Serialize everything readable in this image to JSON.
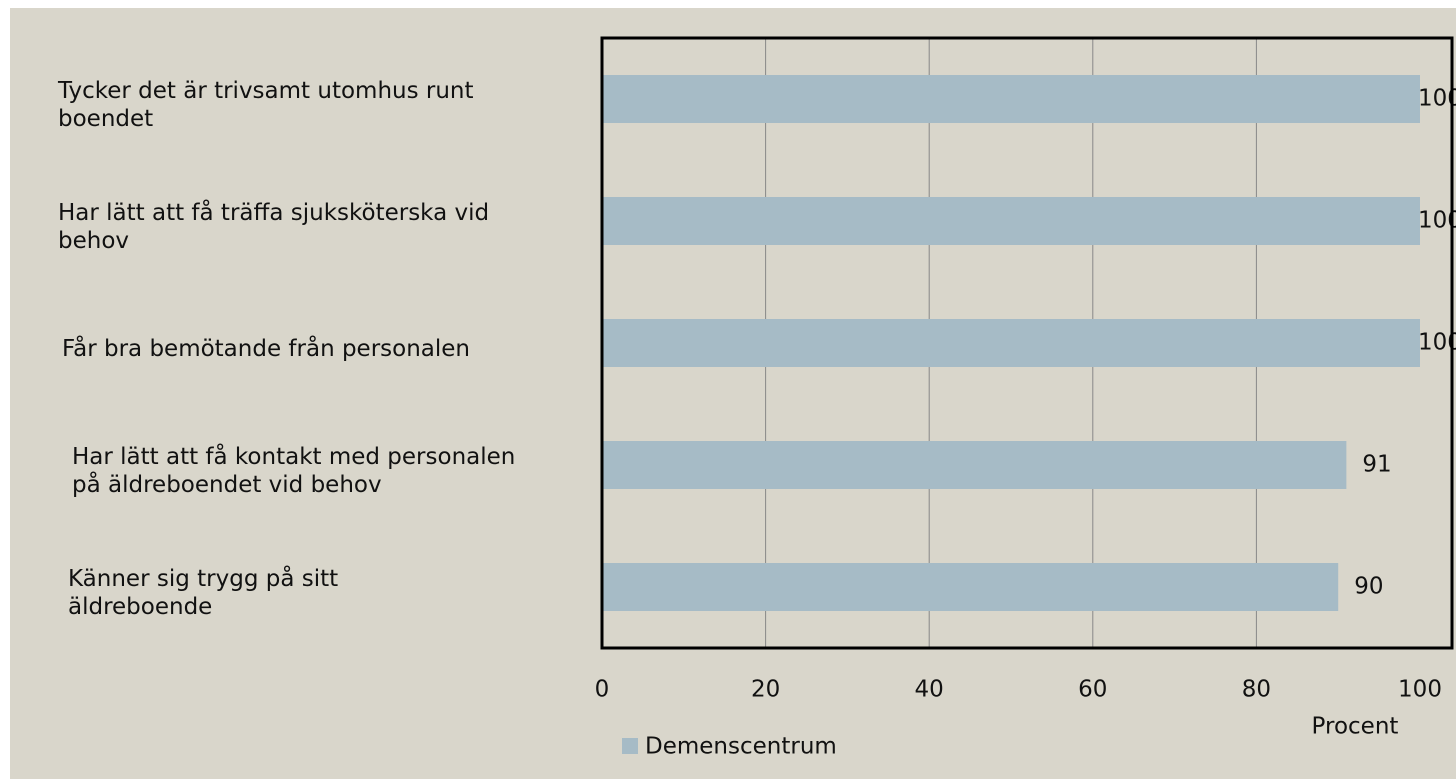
{
  "chart_data": {
    "type": "barh",
    "categories": [
      "Tycker det är trivsamt utomhus runt boendet",
      "Har lätt att få träffa sjuksköterska vid behov",
      "Får bra bemötande från personalen",
      "Har lätt att få kontakt med personalen på äldreboendet vid behov",
      "Känner sig trygg på sitt äldreboende"
    ],
    "series": [
      {
        "name": "Demenscentrum",
        "color": "#a6bbc6",
        "values": [
          100,
          100,
          100,
          91,
          90
        ]
      }
    ],
    "xlim": [
      0,
      100
    ],
    "xticks": [
      0,
      20,
      40,
      60,
      80,
      100
    ],
    "xlabel": "Procent",
    "grid": true,
    "legend": "bottom-left"
  }
}
